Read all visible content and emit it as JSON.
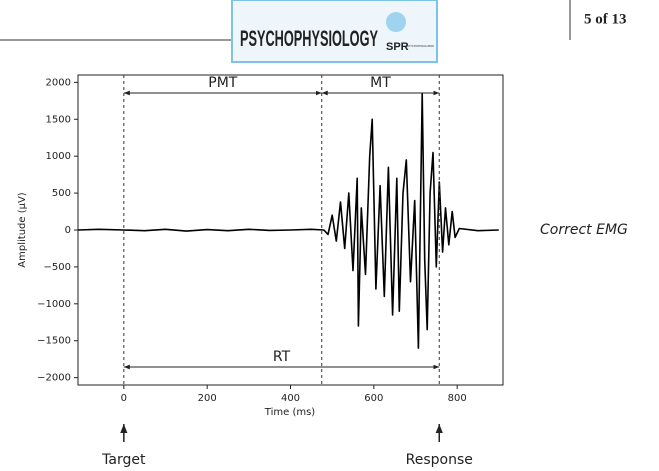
{
  "header": {
    "journal": "PSYCHOPHYSIOLOGY",
    "page": "5 of 13",
    "logo": "SPR",
    "society": "SOCIETY FOR PSYCHOPHYSIOLOGICAL RESEARCH"
  },
  "chart_data": {
    "type": "line",
    "xlabel": "Time (ms)",
    "ylabel": "Amplitude (μV)",
    "x": [
      -110,
      -60,
      0,
      50,
      100,
      150,
      200,
      250,
      300,
      350,
      400,
      450,
      480,
      490,
      500,
      510,
      520,
      530,
      540,
      550,
      560,
      563,
      570,
      580,
      590,
      596,
      605,
      615,
      625,
      635,
      645,
      655,
      661,
      670,
      678,
      688,
      698,
      707,
      716,
      722,
      728,
      735,
      742,
      750,
      757,
      765,
      772,
      780,
      788,
      795,
      805,
      850,
      900
    ],
    "series": [
      {
        "name": "Correct EMG",
        "color": "#000000",
        "values": [
          0,
          10,
          0,
          -10,
          10,
          -15,
          5,
          -10,
          10,
          -5,
          0,
          10,
          0,
          -60,
          200,
          -150,
          380,
          -250,
          500,
          -550,
          700,
          -1300,
          300,
          -600,
          1000,
          1500,
          -800,
          600,
          -900,
          850,
          -1150,
          700,
          -1100,
          500,
          950,
          -700,
          400,
          -1600,
          1850,
          -400,
          -1350,
          500,
          1050,
          -500,
          650,
          -300,
          300,
          -200,
          250,
          -100,
          20,
          -10,
          0
        ]
      }
    ],
    "xlim": [
      -110,
      910
    ],
    "ylim": [
      -2100,
      2100
    ],
    "xticks": [
      0,
      200,
      400,
      600,
      800
    ],
    "yticks": [
      {
        "value": -2000,
        "label": "−2000"
      },
      {
        "value": -1500,
        "label": "−1500"
      },
      {
        "value": -1000,
        "label": "−1000"
      },
      {
        "value": -500,
        "label": "−500"
      },
      0,
      500,
      1000,
      1500,
      2000
    ],
    "intervals": [
      {
        "name": "PMT",
        "start": 0,
        "end": 475
      },
      {
        "name": "MT",
        "start": 475,
        "end": 757
      },
      {
        "name": "RT",
        "start": 0,
        "end": 757
      }
    ],
    "events": [
      {
        "name": "Target",
        "x": 0
      },
      {
        "name": "Response",
        "x": 757
      }
    ]
  }
}
